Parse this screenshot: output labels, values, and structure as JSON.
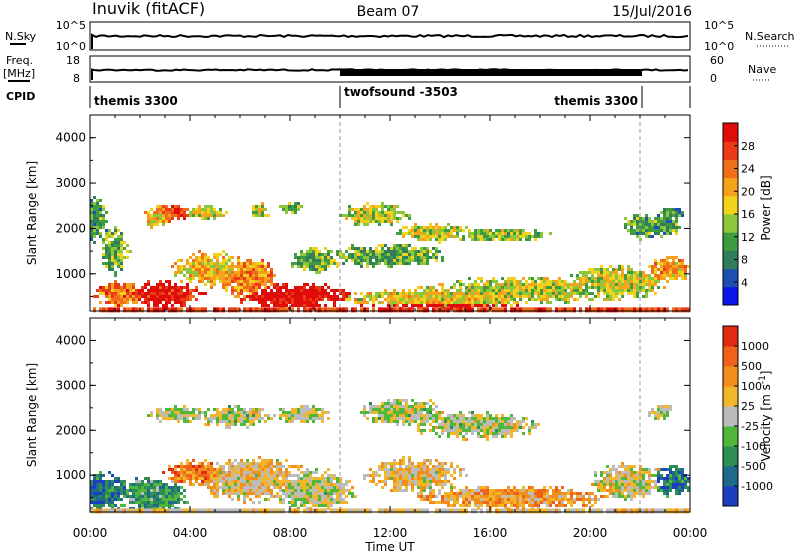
{
  "header": {
    "title": "Inuvik (fitACF)",
    "beam": "Beam 07",
    "date": "15/Jul/2016"
  },
  "top_panels": {
    "nsky_label": "N.Sky",
    "nsky_ticks": [
      "10^5",
      "10^0"
    ],
    "nsearch_label": "N.Search",
    "nsearch_ticks": [
      "10^5",
      "10^0"
    ],
    "freq_label": "Freq.",
    "freq_unit": "[MHz]",
    "freq_ticks": [
      "18",
      "8"
    ],
    "nave_label": "Nave",
    "nave_ticks": [
      "60",
      "0"
    ],
    "cpid_label": "CPID",
    "cpid_segments": [
      {
        "name": "themis 3300",
        "start_h": 0,
        "end_h": 10
      },
      {
        "name": "twofsound -3503",
        "start_h": 10,
        "end_h": 22
      },
      {
        "name": "themis 3300",
        "start_h": 22,
        "end_h": 24
      }
    ]
  },
  "chart_data": [
    {
      "type": "heatmap",
      "quantity": "Power",
      "xlabel": "",
      "ylabel": "Slant Range [km]",
      "xlim_hours": [
        0,
        24
      ],
      "ylim": [
        180,
        4500
      ],
      "yticks": [
        1000,
        2000,
        3000,
        4000
      ],
      "colorbar": {
        "label": "Power [dB]",
        "ticks": [
          "4",
          "8",
          "12",
          "16",
          "20",
          "24",
          "28"
        ],
        "colors": [
          "#0a16e6",
          "#1c4fb0",
          "#2f7d5a",
          "#3f9b3f",
          "#8cc63a",
          "#f2d21a",
          "#f6a21c",
          "#f06d1a",
          "#ea3a16",
          "#e00c0c"
        ]
      },
      "blobs": [
        {
          "t": 0.2,
          "r": 2200,
          "dt": 0.5,
          "dr": 500,
          "v": 0.35
        },
        {
          "t": 1.0,
          "r": 1500,
          "dt": 0.6,
          "dr": 500,
          "v": 0.4
        },
        {
          "t": 3.3,
          "r": 2350,
          "dt": 0.8,
          "dr": 200,
          "v": 0.8
        },
        {
          "t": 2.7,
          "r": 2250,
          "dt": 0.5,
          "dr": 250,
          "v": 0.6
        },
        {
          "t": 4.7,
          "r": 2350,
          "dt": 0.9,
          "dr": 150,
          "v": 0.5
        },
        {
          "t": 6.8,
          "r": 2400,
          "dt": 0.4,
          "dr": 180,
          "v": 0.5
        },
        {
          "t": 8.0,
          "r": 2450,
          "dt": 0.5,
          "dr": 150,
          "v": 0.4
        },
        {
          "t": 3.0,
          "r": 550,
          "dt": 1.5,
          "dr": 300,
          "v": 0.95
        },
        {
          "t": 4.8,
          "r": 1100,
          "dt": 1.5,
          "dr": 400,
          "v": 0.6
        },
        {
          "t": 8.2,
          "r": 500,
          "dt": 2.2,
          "dr": 300,
          "v": 1.0
        },
        {
          "t": 6.3,
          "r": 900,
          "dt": 1.2,
          "dr": 450,
          "v": 0.7
        },
        {
          "t": 1.2,
          "r": 550,
          "dt": 1.0,
          "dr": 300,
          "v": 0.75
        },
        {
          "t": 9.0,
          "r": 1300,
          "dt": 1.0,
          "dr": 300,
          "v": 0.4
        },
        {
          "t": 11.4,
          "r": 2300,
          "dt": 1.4,
          "dr": 250,
          "v": 0.5
        },
        {
          "t": 13.8,
          "r": 1900,
          "dt": 1.6,
          "dr": 200,
          "v": 0.5
        },
        {
          "t": 16.5,
          "r": 1850,
          "dt": 2.0,
          "dr": 150,
          "v": 0.45
        },
        {
          "t": 12.0,
          "r": 1400,
          "dt": 2.5,
          "dr": 250,
          "v": 0.4
        },
        {
          "t": 14.0,
          "r": 450,
          "dt": 4.0,
          "dr": 250,
          "v": 0.55
        },
        {
          "t": 17.5,
          "r": 650,
          "dt": 3.5,
          "dr": 300,
          "v": 0.5
        },
        {
          "t": 21.0,
          "r": 800,
          "dt": 2.0,
          "dr": 400,
          "v": 0.5
        },
        {
          "t": 23.2,
          "r": 1100,
          "dt": 0.8,
          "dr": 300,
          "v": 0.65
        },
        {
          "t": 22.5,
          "r": 2050,
          "dt": 1.2,
          "dr": 300,
          "v": 0.35
        },
        {
          "t": 23.3,
          "r": 2350,
          "dt": 0.5,
          "dr": 150,
          "v": 0.3
        }
      ]
    },
    {
      "type": "heatmap",
      "quantity": "Velocity",
      "xlabel": "Time UT",
      "ylabel": "Slant Range [km]",
      "xlim_hours": [
        0,
        24
      ],
      "ylim": [
        180,
        4500
      ],
      "yticks": [
        1000,
        2000,
        3000,
        4000
      ],
      "xticks": [
        "00:00",
        "04:00",
        "08:00",
        "12:00",
        "16:00",
        "20:00",
        "00:00"
      ],
      "colorbar": {
        "label": "Velocity [m s^-1]",
        "ticks": [
          "1000",
          "500",
          "100",
          "25",
          "-25",
          "-100",
          "-500",
          "-1000"
        ],
        "colors": [
          "#1c3fbf",
          "#1f6a8a",
          "#2e8c55",
          "#4fb83a",
          "#bcbcbc",
          "#f2b62a",
          "#f28f1c",
          "#f0621a",
          "#e02a12"
        ]
      },
      "blobs": [
        {
          "t": 0.5,
          "r": 600,
          "dt": 1.2,
          "dr": 450,
          "v": 0.2
        },
        {
          "t": 2.5,
          "r": 550,
          "dt": 1.5,
          "dr": 400,
          "v": 0.3
        },
        {
          "t": 3.5,
          "r": 2350,
          "dt": 1.2,
          "dr": 200,
          "v": 0.5
        },
        {
          "t": 5.8,
          "r": 2300,
          "dt": 1.5,
          "dr": 250,
          "v": 0.5
        },
        {
          "t": 8.5,
          "r": 2350,
          "dt": 1.2,
          "dr": 200,
          "v": 0.5
        },
        {
          "t": 6.5,
          "r": 900,
          "dt": 2.2,
          "dr": 500,
          "v": 0.6
        },
        {
          "t": 9.0,
          "r": 650,
          "dt": 1.6,
          "dr": 500,
          "v": 0.5
        },
        {
          "t": 4.2,
          "r": 1050,
          "dt": 1.2,
          "dr": 300,
          "v": 0.75
        },
        {
          "t": 12.5,
          "r": 2400,
          "dt": 1.8,
          "dr": 300,
          "v": 0.5
        },
        {
          "t": 15.5,
          "r": 2100,
          "dt": 2.5,
          "dr": 300,
          "v": 0.5
        },
        {
          "t": 13.0,
          "r": 1000,
          "dt": 2.0,
          "dr": 400,
          "v": 0.6
        },
        {
          "t": 17.0,
          "r": 500,
          "dt": 4.0,
          "dr": 250,
          "v": 0.68
        },
        {
          "t": 21.5,
          "r": 850,
          "dt": 1.6,
          "dr": 400,
          "v": 0.55
        },
        {
          "t": 23.3,
          "r": 850,
          "dt": 0.8,
          "dr": 350,
          "v": 0.2
        },
        {
          "t": 22.8,
          "r": 2400,
          "dt": 0.5,
          "dr": 200,
          "v": 0.5
        }
      ]
    }
  ]
}
